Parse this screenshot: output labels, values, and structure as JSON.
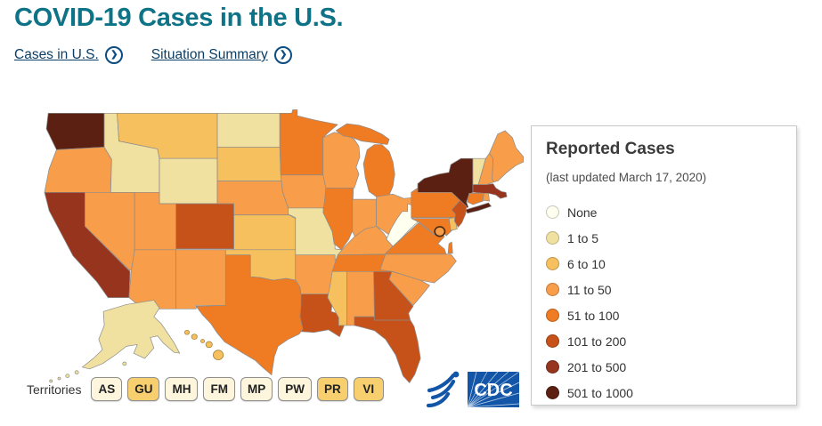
{
  "page": {
    "title": "COVID-19 Cases in the U.S.",
    "title_color": "#0e7386",
    "nav_links": [
      {
        "label": "Cases in U.S."
      },
      {
        "label": "Situation Summary"
      }
    ]
  },
  "legend": {
    "title": "Reported Cases",
    "subtitle": "(last updated March 17, 2020)",
    "items": [
      {
        "label": "None",
        "color": "#fffff0"
      },
      {
        "label": "1 to 5",
        "color": "#f1e1a0"
      },
      {
        "label": "6 to 10",
        "color": "#f6c05e"
      },
      {
        "label": "11 to 50",
        "color": "#f89d49"
      },
      {
        "label": "51 to 100",
        "color": "#ef7b23"
      },
      {
        "label": "101 to 200",
        "color": "#c65119"
      },
      {
        "label": "201 to 500",
        "color": "#96341e"
      },
      {
        "label": "501 to 1000",
        "color": "#5c2012"
      }
    ]
  },
  "territories": {
    "label": "Territories",
    "buttons": [
      {
        "label": "AS",
        "bucket": "None",
        "color": "#fdf6dd"
      },
      {
        "label": "GU",
        "bucket": "6 to 10",
        "color": "#f7cf6e"
      },
      {
        "label": "MH",
        "bucket": "None",
        "color": "#fdf6dd"
      },
      {
        "label": "FM",
        "bucket": "None",
        "color": "#fdf6dd"
      },
      {
        "label": "MP",
        "bucket": "None",
        "color": "#fdf6dd"
      },
      {
        "label": "PW",
        "bucket": "None",
        "color": "#fdf6dd"
      },
      {
        "label": "PR",
        "bucket": "6 to 10",
        "color": "#f7cf6e"
      },
      {
        "label": "VI",
        "bucket": "6 to 10",
        "color": "#f7cf6e"
      }
    ]
  },
  "logo": {
    "agency": "CDC"
  },
  "chart_data": {
    "type": "choropleth_map",
    "title": "Reported Cases",
    "subtitle": "(last updated March 17, 2020)",
    "legend_buckets": [
      "None",
      "1 to 5",
      "6 to 10",
      "11 to 50",
      "51 to 100",
      "101 to 200",
      "201 to 500",
      "501 to 1000"
    ],
    "states": {
      "WA": "501 to 1000",
      "OR": "11 to 50",
      "CA": "201 to 500",
      "NV": "11 to 50",
      "ID": "1 to 5",
      "MT": "6 to 10",
      "WY": "1 to 5",
      "UT": "11 to 50",
      "CO": "101 to 200",
      "AZ": "11 to 50",
      "NM": "11 to 50",
      "ND": "1 to 5",
      "SD": "6 to 10",
      "NE": "11 to 50",
      "KS": "6 to 10",
      "OK": "6 to 10",
      "TX": "51 to 100",
      "MN": "51 to 100",
      "IA": "11 to 50",
      "MO": "1 to 5",
      "AR": "11 to 50",
      "LA": "101 to 200",
      "WI": "11 to 50",
      "IL": "51 to 100",
      "MI": "51 to 100",
      "IN": "11 to 50",
      "OH": "11 to 50",
      "KY": "11 to 50",
      "TN": "51 to 100",
      "MS": "6 to 10",
      "AL": "11 to 50",
      "GA": "101 to 200",
      "FL": "101 to 200",
      "SC": "11 to 50",
      "NC": "11 to 50",
      "VA": "51 to 100",
      "WV": "None",
      "MD": "51 to 100",
      "DE": "6 to 10",
      "DC": "11 to 50",
      "PA": "51 to 100",
      "NY": "501 to 1000",
      "NJ": "101 to 200",
      "CT": "51 to 100",
      "RI": "11 to 50",
      "VT": "1 to 5",
      "NH": "11 to 50",
      "MA": "201 to 500",
      "ME": "11 to 50",
      "AK": "1 to 5",
      "HI": "6 to 10"
    }
  }
}
